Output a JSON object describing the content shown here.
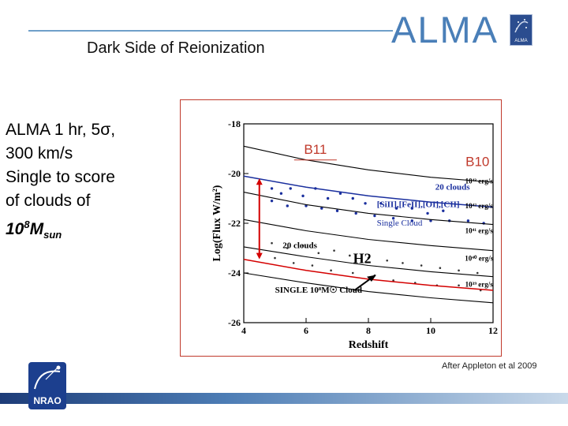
{
  "slide": {
    "title": "Dark Side of Reionization",
    "alma_logo": "ALMA",
    "alma_badge": "ALMA",
    "nrao_logo": "NRAO",
    "left_text": {
      "line1": "ALMA 1 hr, 5σ,",
      "line2": "300 km/s",
      "line3": "Single to score",
      "line4": "of clouds of",
      "mass_base": "10",
      "mass_exp": "8",
      "mass_symbol": "M",
      "mass_sub": "sun"
    },
    "credit": "After Appleton et al 2009",
    "colors": {
      "accent": "#4a7fb8",
      "frame": "#c0392b",
      "nrao": "#1c3f8e"
    }
  },
  "chart_data": {
    "type": "line",
    "xlabel": "Redshift",
    "ylabel": "Log(Flux W/m²)",
    "xlim": [
      4,
      12
    ],
    "ylim": [
      -26,
      -18
    ],
    "xticks": [
      "4",
      "6",
      "8",
      "10",
      "12"
    ],
    "yticks": [
      "-18",
      "-20",
      "-22",
      "-24",
      "-26"
    ],
    "series": [
      {
        "name": "10^43 erg/s",
        "color": "#000000",
        "values": [
          [
            4,
            -18.9
          ],
          [
            6,
            -19.45
          ],
          [
            8,
            -19.85
          ],
          [
            10,
            -20.15
          ],
          [
            12,
            -20.35
          ]
        ]
      },
      {
        "name": "",
        "color": "#1a2f9e",
        "values": [
          [
            4,
            -20.1
          ],
          [
            6,
            -20.55
          ],
          [
            8,
            -20.9
          ],
          [
            10,
            -21.15
          ],
          [
            12,
            -21.35
          ]
        ]
      },
      {
        "name": "10^42 erg/s",
        "color": "#000000",
        "values": [
          [
            4,
            -20.75
          ],
          [
            6,
            -21.25
          ],
          [
            8,
            -21.6
          ],
          [
            10,
            -21.85
          ],
          [
            12,
            -22.05
          ]
        ]
      },
      {
        "name": "10^41 erg/s",
        "color": "#000000",
        "values": [
          [
            4,
            -21.85
          ],
          [
            6,
            -22.3
          ],
          [
            8,
            -22.65
          ],
          [
            10,
            -22.9
          ],
          [
            12,
            -23.1
          ]
        ]
      },
      {
        "name": "10^40 erg/s",
        "color": "#000000",
        "values": [
          [
            4,
            -22.95
          ],
          [
            6,
            -23.35
          ],
          [
            8,
            -23.7
          ],
          [
            10,
            -23.95
          ],
          [
            12,
            -24.15
          ]
        ]
      },
      {
        "name": "",
        "color": "#d40000",
        "values": [
          [
            4,
            -23.45
          ],
          [
            6,
            -23.9
          ],
          [
            8,
            -24.25
          ],
          [
            10,
            -24.5
          ],
          [
            12,
            -24.7
          ]
        ]
      },
      {
        "name": "10^39 erg/s",
        "color": "#000000",
        "values": [
          [
            4,
            -24.0
          ],
          [
            6,
            -24.4
          ],
          [
            8,
            -24.75
          ],
          [
            10,
            -25.0
          ],
          [
            12,
            -25.2
          ]
        ]
      }
    ],
    "annotations": [
      {
        "text": "20 clouds",
        "x": 10.7,
        "y": -20.65,
        "color": "#1a2f9e",
        "bold": true
      },
      {
        "text": "[SiII],[FeII],[OI],[CII]",
        "x": 9.6,
        "y": -21.35,
        "color": "#1a2f9e",
        "bold": true
      },
      {
        "text": "Single Cloud",
        "x": 9.0,
        "y": -22.1,
        "color": "#1a2f9e",
        "bold": false
      },
      {
        "text": "20 clouds",
        "x": 5.8,
        "y": -23.0,
        "color": "#000000",
        "bold": true
      },
      {
        "text": "H2",
        "x": 7.8,
        "y": -23.6,
        "color": "#000000",
        "bold": true
      },
      {
        "text": "SINGLE 10⁸M☉ Cloud",
        "x": 6.4,
        "y": -24.8,
        "color": "#000000",
        "bold": true
      },
      {
        "text": "10⁴³ erg/s",
        "x": 11.55,
        "y": -20.4,
        "color": "#000000",
        "bold": true
      },
      {
        "text": "10⁴² erg/s",
        "x": 11.55,
        "y": -21.4,
        "color": "#000000",
        "bold": true
      },
      {
        "text": "10⁴¹ erg/s",
        "x": 11.55,
        "y": -22.4,
        "color": "#000000",
        "bold": true
      },
      {
        "text": "10⁴⁰ erg/s",
        "x": 11.55,
        "y": -23.5,
        "color": "#000000",
        "bold": true
      },
      {
        "text": "10³⁹ erg/s",
        "x": 11.55,
        "y": -24.55,
        "color": "#000000",
        "bold": true
      }
    ],
    "band_labels": [
      {
        "text": "B11",
        "x": 6.3,
        "y": -19.2,
        "color": "#c0392b"
      },
      {
        "text": "B10",
        "x": 11.5,
        "y": -19.7,
        "color": "#c0392b"
      }
    ],
    "range_marker": {
      "x": 4.5,
      "y_top": -20.2,
      "y_bottom": -23.45,
      "color": "#d40000"
    },
    "dots_upper": [
      [
        4.9,
        -20.6
      ],
      [
        5.2,
        -20.8
      ],
      [
        5.5,
        -20.6
      ],
      [
        5.9,
        -20.9
      ],
      [
        6.3,
        -20.6
      ],
      [
        6.7,
        -21.0
      ],
      [
        7.1,
        -20.8
      ],
      [
        7.5,
        -21.0
      ],
      [
        7.9,
        -21.2
      ],
      [
        8.4,
        -21.2
      ],
      [
        8.9,
        -21.4
      ],
      [
        9.4,
        -21.4
      ],
      [
        9.9,
        -21.6
      ],
      [
        10.4,
        -21.5
      ],
      [
        4.9,
        -21.1
      ],
      [
        5.4,
        -21.3
      ],
      [
        6.0,
        -21.3
      ],
      [
        6.5,
        -21.4
      ],
      [
        7.0,
        -21.5
      ],
      [
        7.6,
        -21.6
      ],
      [
        8.2,
        -21.7
      ],
      [
        8.8,
        -21.8
      ],
      [
        9.4,
        -21.9
      ],
      [
        10.0,
        -21.9
      ],
      [
        10.6,
        -21.9
      ],
      [
        11.2,
        -21.9
      ],
      [
        11.7,
        -22.0
      ]
    ],
    "dots_lower": [
      [
        4.9,
        -22.8
      ],
      [
        5.4,
        -23.0
      ],
      [
        5.9,
        -22.9
      ],
      [
        6.4,
        -23.2
      ],
      [
        6.9,
        -23.1
      ],
      [
        7.4,
        -23.3
      ],
      [
        8.0,
        -23.4
      ],
      [
        8.6,
        -23.5
      ],
      [
        9.1,
        -23.6
      ],
      [
        9.7,
        -23.7
      ],
      [
        10.3,
        -23.8
      ],
      [
        10.9,
        -23.9
      ],
      [
        11.5,
        -24.0
      ],
      [
        5.0,
        -23.4
      ],
      [
        5.6,
        -23.6
      ],
      [
        6.2,
        -23.7
      ],
      [
        6.8,
        -23.9
      ],
      [
        7.5,
        -24.0
      ],
      [
        8.2,
        -24.1
      ],
      [
        8.8,
        -24.3
      ],
      [
        9.5,
        -24.4
      ],
      [
        10.2,
        -24.5
      ],
      [
        10.9,
        -24.5
      ],
      [
        11.6,
        -24.7
      ]
    ]
  }
}
